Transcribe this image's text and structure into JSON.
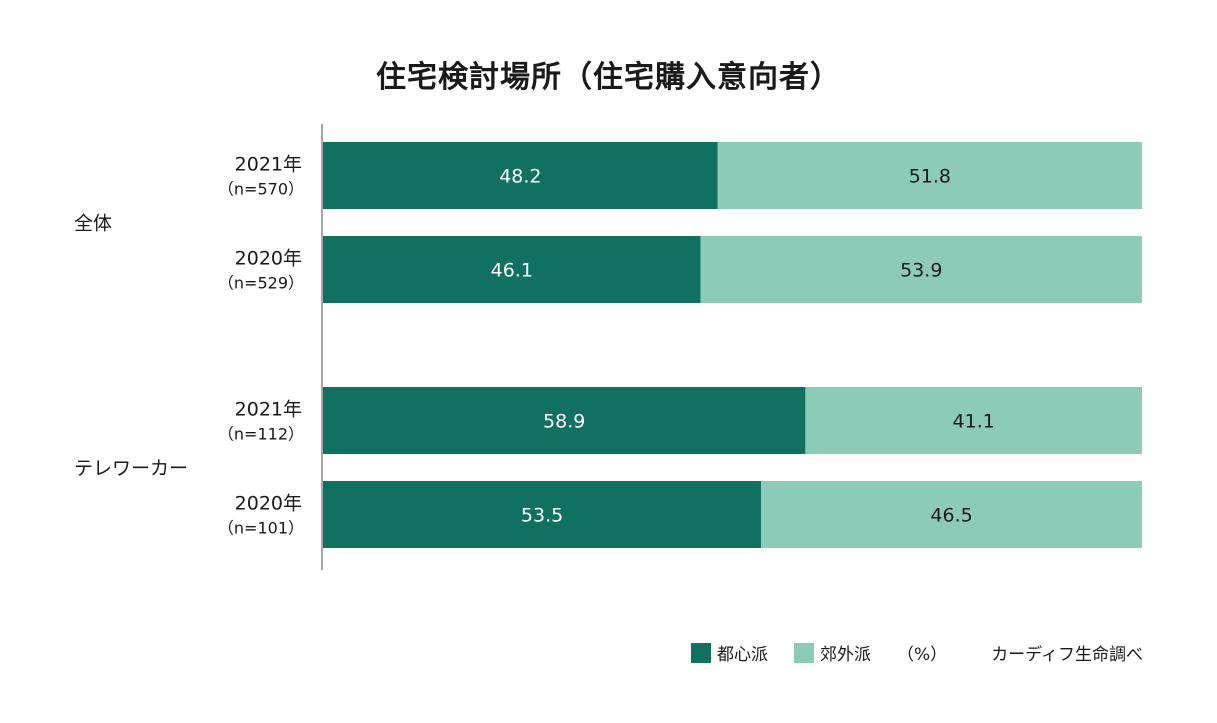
{
  "chart_data": {
    "type": "bar",
    "stacked": true,
    "orientation": "horizontal",
    "title": "住宅検討場所（住宅購入意向者）",
    "unit_label": "（%）",
    "source": "カーディフ生命調べ",
    "groups": [
      {
        "name": "全体",
        "rows": [
          {
            "year": "2021年",
            "n": "（n=570）",
            "values": [
              48.2,
              51.8
            ]
          },
          {
            "year": "2020年",
            "n": "（n=529）",
            "values": [
              46.1,
              53.9
            ]
          }
        ]
      },
      {
        "name": "テレワーカー",
        "rows": [
          {
            "year": "2021年",
            "n": "（n=112）",
            "values": [
              58.9,
              41.1
            ]
          },
          {
            "year": "2020年",
            "n": "（n=101）",
            "values": [
              53.5,
              46.5
            ]
          }
        ]
      }
    ],
    "series": [
      {
        "name": "都心派",
        "color": "#107161",
        "label_color": "#ffffff"
      },
      {
        "name": "郊外派",
        "color": "#8dcbb9",
        "label_color": "#1a1a1a"
      }
    ],
    "xlim": [
      0,
      100
    ],
    "grid": false,
    "legend_position": "bottom-right"
  }
}
